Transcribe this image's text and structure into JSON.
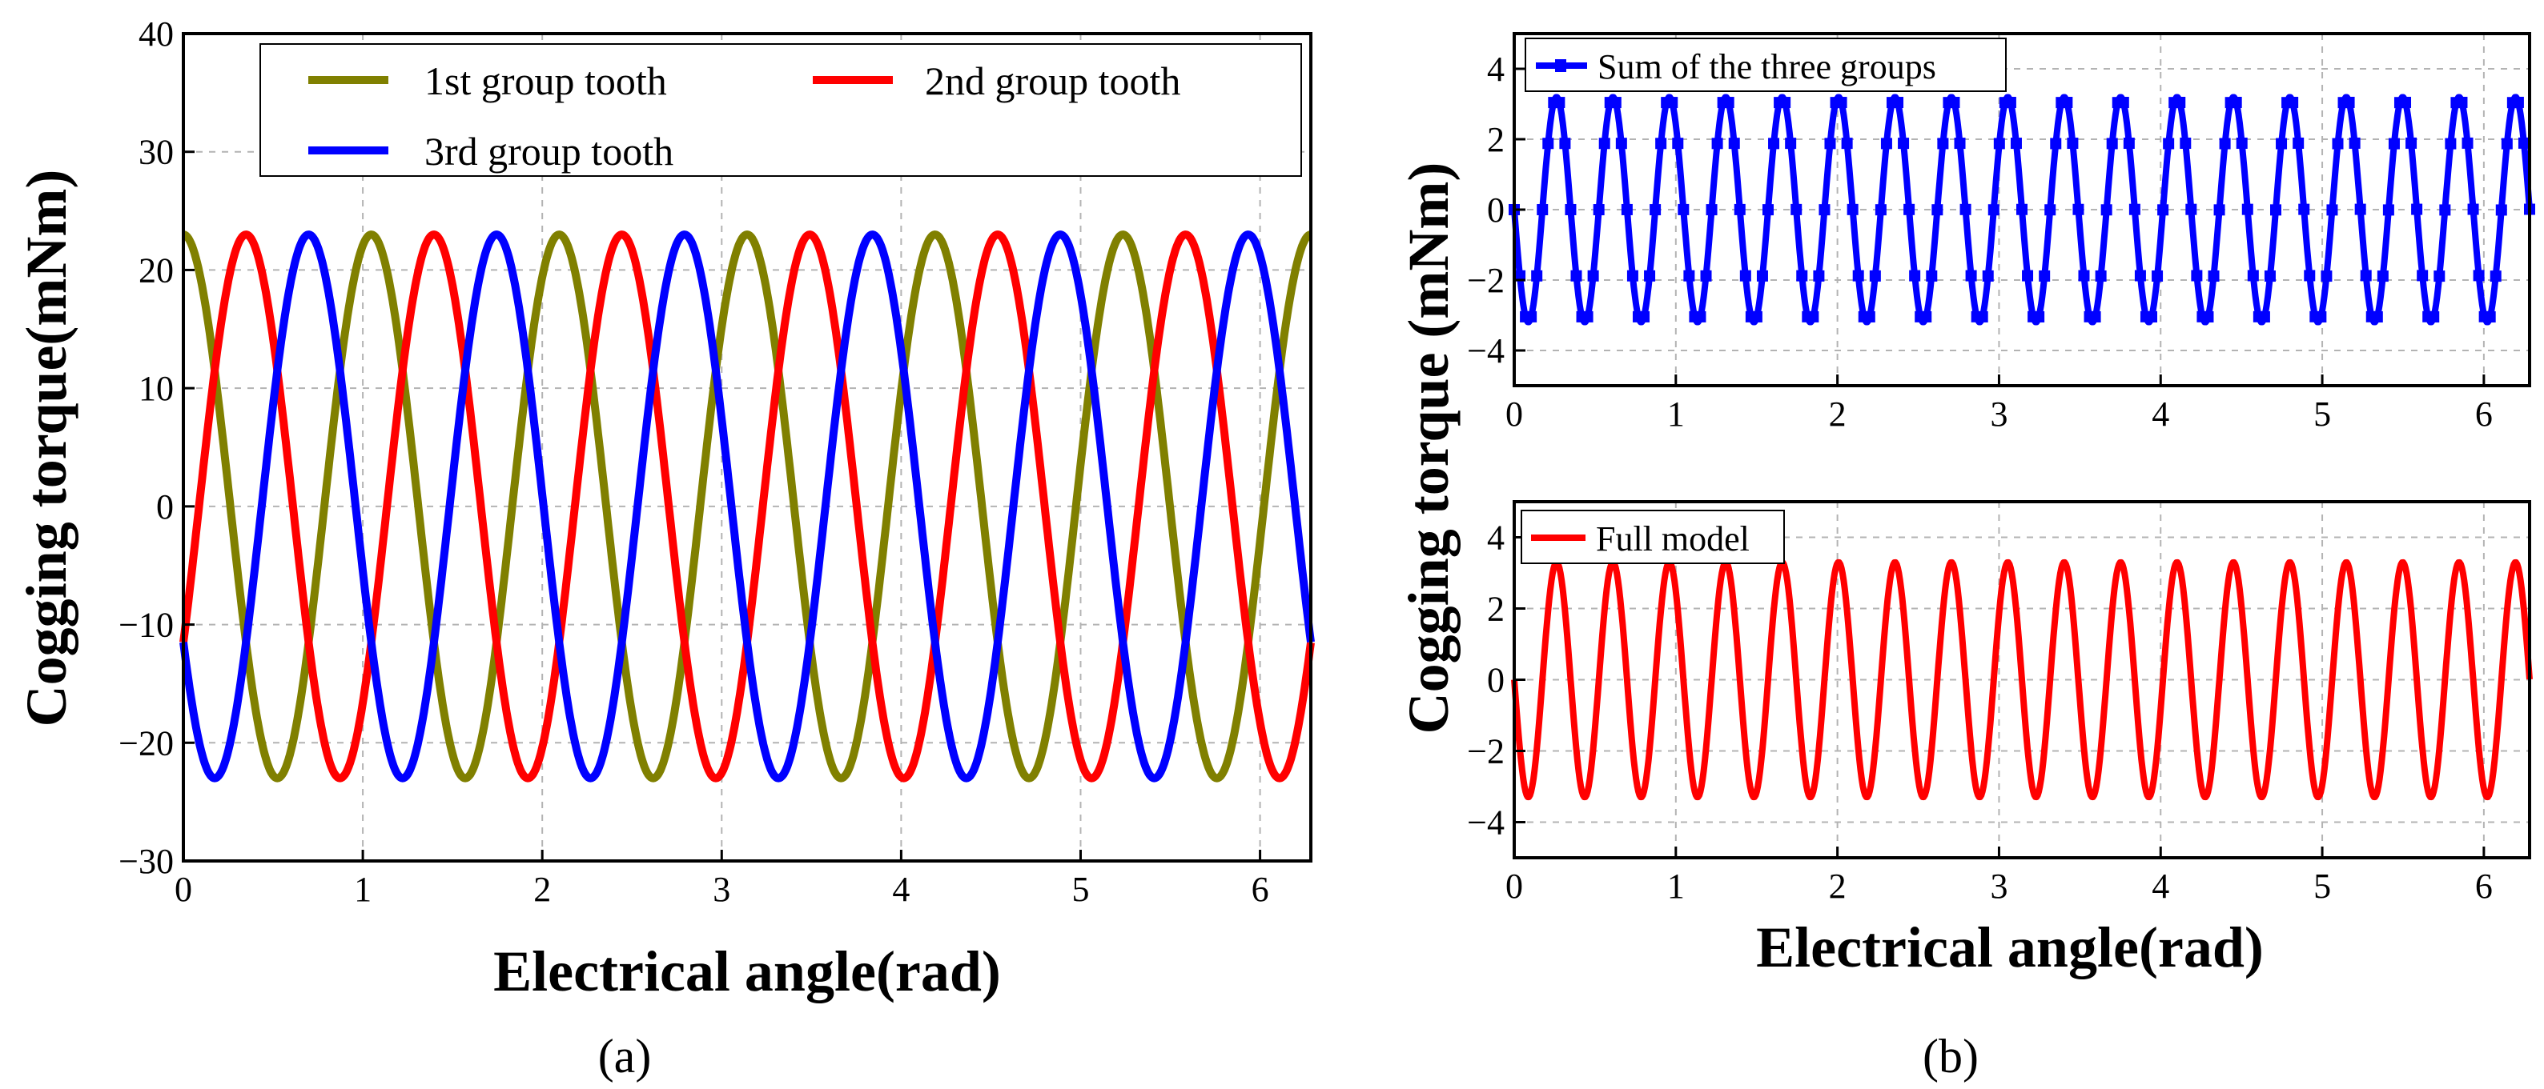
{
  "figure": {
    "caption_a": "(a)",
    "caption_b": "(b)"
  },
  "chart_data": [
    {
      "id": "a",
      "type": "line",
      "xlabel": "Electrical angle(rad)",
      "ylabel": "Cogging torque(mNm)",
      "xlim": [
        0,
        6.283
      ],
      "ylim": [
        -30,
        40
      ],
      "xticks": [
        0,
        1,
        2,
        3,
        4,
        5,
        6
      ],
      "yticks": [
        -30,
        -20,
        -10,
        0,
        10,
        20,
        30,
        40
      ],
      "grid": true,
      "legend_position": "top",
      "series": [
        {
          "name": "1st group tooth",
          "color": "#808000",
          "amplitude": 23,
          "cycles": 6,
          "phase_deg": 90
        },
        {
          "name": "2nd group tooth",
          "color": "#ff0000",
          "amplitude": 23,
          "cycles": 6,
          "phase_deg": -30
        },
        {
          "name": "3rd group tooth",
          "color": "#0000ff",
          "amplitude": 23,
          "cycles": 6,
          "phase_deg": 210
        }
      ]
    },
    {
      "id": "b-top",
      "type": "line",
      "xlabel": "",
      "ylabel": "",
      "xlim": [
        0,
        6.283
      ],
      "ylim": [
        -5,
        5
      ],
      "xticks": [
        0,
        1,
        2,
        3,
        4,
        5,
        6
      ],
      "yticks": [
        -4,
        -2,
        0,
        2,
        4
      ],
      "grid": true,
      "legend_position": "top-left",
      "series": [
        {
          "name": "Sum of the three groups",
          "color": "#0000ff",
          "amplitude": 3.2,
          "cycles": 18,
          "phase_deg": 180,
          "markers": true
        }
      ]
    },
    {
      "id": "b-bottom",
      "type": "line",
      "xlabel": "Electrical angle(rad)",
      "ylabel": "",
      "xlim": [
        0,
        6.283
      ],
      "ylim": [
        -5,
        5
      ],
      "xticks": [
        0,
        1,
        2,
        3,
        4,
        5,
        6
      ],
      "yticks": [
        -4,
        -2,
        0,
        2,
        4
      ],
      "grid": true,
      "legend_position": "top-left",
      "series": [
        {
          "name": "Full model",
          "color": "#ff0000",
          "amplitude": 3.3,
          "cycles": 18,
          "phase_deg": 180
        }
      ]
    }
  ],
  "shared_ylabel_b": "Cogging torque (mNm)"
}
